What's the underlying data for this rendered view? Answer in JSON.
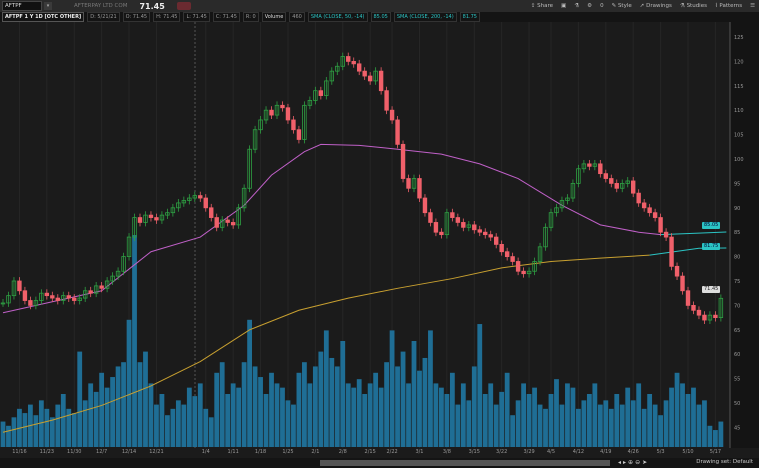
{
  "header": {
    "symbol": "AFTPF",
    "description": "AFTERPAY LTD COM",
    "last": "71.45",
    "toolbar": {
      "share": "Share",
      "counter": "0",
      "style": "Style",
      "drawings": "Drawings",
      "studies": "Studies",
      "patterns": "Patterns"
    }
  },
  "legend": {
    "title": "AFTPF 1 Y 1D [OTC OTHER]",
    "date": "D: 5/21/21",
    "open": "O: 71.45",
    "high": "H: 71.45",
    "low": "L: 71.45",
    "close": "C: 71.45",
    "range": "R: 0",
    "volume_label": "Volume",
    "volume_value": "460",
    "sma50_label": "SMA (CLOSE, 50, -14)",
    "sma50_value": "85.05",
    "sma200_label": "SMA (CLOSE, 200, -14)",
    "sma200_value": "81.75"
  },
  "price_labels": {
    "sma50": "85.05",
    "sma200": "81.75",
    "last": "71.45"
  },
  "footer": {
    "drawing_set": "Drawing set: Default"
  },
  "colors": {
    "up": "#2ea043",
    "down": "#f0606a",
    "volume": "#1f6e95",
    "sma50": "#c060c8",
    "sma200": "#c8a030",
    "sma_recent": "#2bc4c4",
    "background": "#1b1b1b"
  },
  "chart_data": {
    "type": "candlestick",
    "y_axis": {
      "min": 40,
      "max": 127,
      "ticks": [
        125,
        120,
        115,
        110,
        105,
        100,
        95,
        90,
        85,
        80,
        75,
        70,
        65,
        60,
        55,
        50,
        45,
        40
      ]
    },
    "x_ticks": [
      "11/16",
      "11/23",
      "11/30",
      "12/7",
      "12/14",
      "12/21",
      "1/4",
      "1/11",
      "1/18",
      "1/25",
      "2/1",
      "2/8",
      "2/15",
      "2/22",
      "3/1",
      "3/8",
      "3/15",
      "3/22",
      "3/29",
      "4/5",
      "4/12",
      "4/19",
      "4/26",
      "5/3",
      "5/10",
      "5/17"
    ],
    "x_tick_index": [
      3,
      8,
      13,
      18,
      23,
      28,
      37,
      42,
      47,
      52,
      57,
      62,
      67,
      71,
      76,
      81,
      86,
      91,
      96,
      100,
      105,
      110,
      115,
      120,
      125,
      130
    ],
    "closes": [
      70.5,
      72,
      75,
      73,
      71,
      70,
      71,
      72.5,
      72,
      71.5,
      71,
      72,
      71.5,
      71,
      71.5,
      73,
      72.5,
      74,
      73.5,
      75,
      76,
      77,
      80,
      84,
      88,
      87,
      88.5,
      88,
      87.5,
      88.5,
      89,
      90,
      91,
      91.5,
      92,
      92.5,
      92,
      90,
      88,
      86,
      87.5,
      87,
      86.5,
      90,
      94,
      102,
      106,
      108,
      110,
      109,
      111,
      110.5,
      108,
      106,
      104,
      111,
      112,
      114,
      113,
      116,
      118,
      119,
      121,
      120,
      119.5,
      118,
      117,
      116,
      118,
      114,
      110,
      108,
      103,
      96,
      94,
      96,
      92,
      89,
      87,
      85,
      84.5,
      89,
      88,
      87,
      86,
      86.5,
      85.5,
      85,
      84.5,
      84,
      82.5,
      81,
      80,
      79,
      77,
      76.5,
      77,
      79,
      82,
      86,
      89,
      90,
      91.5,
      92,
      95,
      98,
      99,
      98.5,
      99,
      97,
      96,
      95,
      94,
      95,
      95.5,
      93,
      91,
      90,
      89,
      88,
      85,
      84,
      78,
      76,
      73,
      70,
      69,
      68,
      67,
      68,
      67.5,
      71.45
    ],
    "volume": [
      12,
      10,
      14,
      18,
      16,
      20,
      15,
      22,
      18,
      14,
      20,
      25,
      18,
      16,
      45,
      22,
      30,
      26,
      35,
      28,
      33,
      38,
      40,
      60,
      100,
      40,
      45,
      30,
      20,
      25,
      15,
      18,
      22,
      20,
      28,
      24,
      30,
      18,
      14,
      35,
      40,
      25,
      30,
      28,
      40,
      60,
      38,
      33,
      25,
      35,
      30,
      28,
      22,
      20,
      35,
      40,
      30,
      38,
      45,
      55,
      42,
      38,
      50,
      30,
      28,
      32,
      25,
      30,
      35,
      28,
      40,
      55,
      38,
      45,
      30,
      50,
      36,
      42,
      55,
      30,
      28,
      25,
      35,
      20,
      30,
      22,
      38,
      58,
      25,
      30,
      20,
      26,
      35,
      15,
      22,
      30,
      25,
      28,
      20,
      18,
      25,
      32,
      20,
      30,
      28,
      18,
      22,
      25,
      30,
      20,
      22,
      18,
      25,
      20,
      28,
      22,
      30,
      18,
      25,
      20,
      15,
      22,
      28,
      35,
      30,
      25,
      28,
      20,
      22,
      10,
      8,
      12
    ],
    "sma50": [
      [
        0,
        68.5
      ],
      [
        18,
        73
      ],
      [
        27,
        81
      ],
      [
        36,
        84
      ],
      [
        44,
        90.5
      ],
      [
        49,
        96.7
      ],
      [
        55,
        101.5
      ],
      [
        58,
        103
      ],
      [
        65,
        102.8
      ],
      [
        72,
        102
      ],
      [
        80,
        101
      ],
      [
        87,
        99
      ],
      [
        94,
        96
      ],
      [
        102,
        90.5
      ],
      [
        109,
        86.5
      ],
      [
        116,
        85
      ],
      [
        120,
        84.5
      ],
      [
        127,
        84.8
      ],
      [
        132,
        85.05
      ]
    ],
    "sma200": [
      [
        0,
        44
      ],
      [
        9,
        46.5
      ],
      [
        18,
        49.5
      ],
      [
        27,
        53.5
      ],
      [
        36,
        58.5
      ],
      [
        45,
        65
      ],
      [
        54,
        69
      ],
      [
        63,
        71.5
      ],
      [
        72,
        73.5
      ],
      [
        82,
        75.5
      ],
      [
        91,
        77.7
      ],
      [
        100,
        79
      ],
      [
        109,
        79.7
      ],
      [
        118,
        80.3
      ],
      [
        127,
        81.7
      ],
      [
        132,
        81.75
      ]
    ]
  }
}
